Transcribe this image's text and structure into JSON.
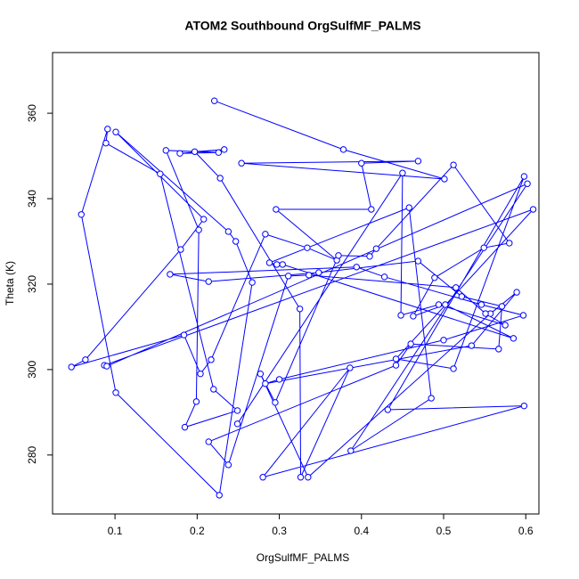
{
  "chart_data": {
    "type": "line",
    "title": "ATOM2 Southbound OrgSulfMF_PALMS",
    "x_label": "OrgSulfMF_PALMS",
    "y_label": "Theta (K)",
    "color": "#0000ff",
    "marker": "circle",
    "x": [
      0.221,
      0.378,
      0.501,
      0.254,
      0.469,
      0.4,
      0.412,
      0.296,
      0.37,
      0.334,
      0.283,
      0.217,
      0.204,
      0.184,
      0.047,
      0.064,
      0.18,
      0.208,
      0.101,
      0.238,
      0.247,
      0.267,
      0.227,
      0.101,
      0.059,
      0.091,
      0.089,
      0.155,
      0.22,
      0.249,
      0.185,
      0.199,
      0.202,
      0.162,
      0.226,
      0.179,
      0.233,
      0.197,
      0.228,
      0.325,
      0.326,
      0.386,
      0.28,
      0.598,
      0.432,
      0.598,
      0.512,
      0.442,
      0.609,
      0.087,
      0.09,
      0.602,
      0.387,
      0.485,
      0.458,
      0.288,
      0.297,
      0.304,
      0.585,
      0.502,
      0.463,
      0.489,
      0.549,
      0.58,
      0.512,
      0.418,
      0.41,
      0.372,
      0.295,
      0.277,
      0.335,
      0.557,
      0.589,
      0.534,
      0.283,
      0.3,
      0.5,
      0.597,
      0.546,
      0.428,
      0.394,
      0.167,
      0.214,
      0.348,
      0.469,
      0.522,
      0.571,
      0.567,
      0.46,
      0.442,
      0.214,
      0.238,
      0.311,
      0.336,
      0.515,
      0.551,
      0.575,
      0.494,
      0.448,
      0.45,
      0.249
    ],
    "values": [
      362.9,
      351.5,
      344.6,
      348.3,
      348.8,
      348.3,
      337.5,
      337.5,
      325.6,
      328.5,
      331.7,
      302.3,
      299.0,
      308.1,
      300.6,
      302.3,
      328.1,
      335.2,
      355.6,
      332.3,
      330.0,
      320.4,
      270.6,
      294.6,
      336.3,
      356.3,
      353.0,
      345.8,
      295.4,
      290.4,
      286.5,
      292.5,
      332.7,
      351.3,
      350.8,
      350.6,
      351.5,
      351.0,
      344.8,
      314.2,
      274.8,
      300.4,
      274.8,
      291.5,
      290.6,
      345.2,
      300.2,
      302.5,
      337.5,
      301.0,
      300.8,
      343.5,
      281.0,
      293.3,
      337.9,
      325.0,
      324.6,
      324.6,
      307.3,
      315.2,
      312.5,
      321.5,
      328.5,
      329.6,
      347.9,
      328.3,
      326.5,
      326.7,
      292.3,
      299.0,
      274.8,
      313.1,
      318.1,
      305.6,
      296.7,
      297.7,
      306.9,
      312.7,
      315.2,
      321.7,
      324.0,
      322.3,
      320.6,
      322.7,
      325.4,
      317.1,
      314.8,
      304.8,
      306.0,
      301.0,
      283.1,
      277.7,
      321.9,
      322.1,
      319.2,
      313.1,
      310.4,
      315.2,
      312.7,
      346.0,
      287.3
    ],
    "xlim": [
      0.024,
      0.616
    ],
    "ylim": [
      266.2,
      374.2
    ],
    "xticks": [
      0.1,
      0.2,
      0.3,
      0.4,
      0.5,
      0.6
    ],
    "yticks": [
      280,
      300,
      320,
      340,
      360
    ]
  }
}
